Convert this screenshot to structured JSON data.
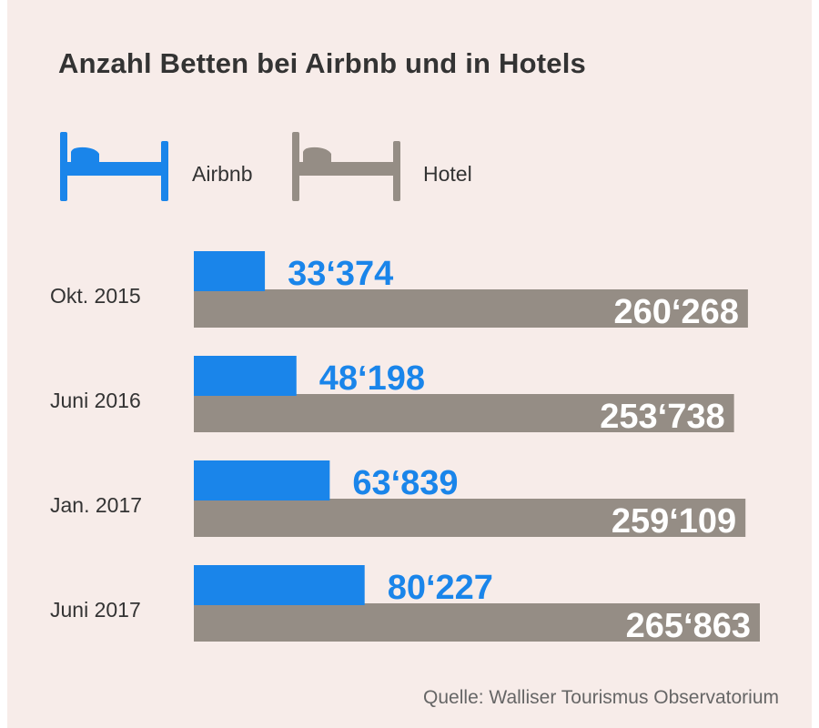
{
  "title": "Anzahl Betten bei Airbnb und in Hotels",
  "source": "Quelle: Walliser Tourismus Observatorium",
  "legend": {
    "airbnb": "Airbnb",
    "hotel": "Hotel"
  },
  "colors": {
    "airbnb": "#1a85ea",
    "hotel": "#958d85",
    "background": "#f7ece9"
  },
  "chart_data": {
    "type": "bar",
    "orientation": "horizontal",
    "categories": [
      "Okt. 2015",
      "Juni  2016",
      "Jan. 2017",
      "Juni 2017"
    ],
    "series": [
      {
        "name": "Airbnb",
        "values": [
          33374,
          48198,
          63839,
          80227
        ],
        "labels": [
          "33‘374",
          "48‘198",
          "63‘839",
          "80‘227"
        ]
      },
      {
        "name": "Hotel",
        "values": [
          260268,
          253738,
          259109,
          265863
        ],
        "labels": [
          "260‘268",
          "253‘738",
          "259‘109",
          "265‘863"
        ]
      }
    ],
    "title": "Anzahl Betten bei Airbnb und in Hotels",
    "xlabel": "",
    "ylabel": "",
    "xlim": [
      0,
      265863
    ],
    "grid": false,
    "legend_position": "top-left"
  }
}
